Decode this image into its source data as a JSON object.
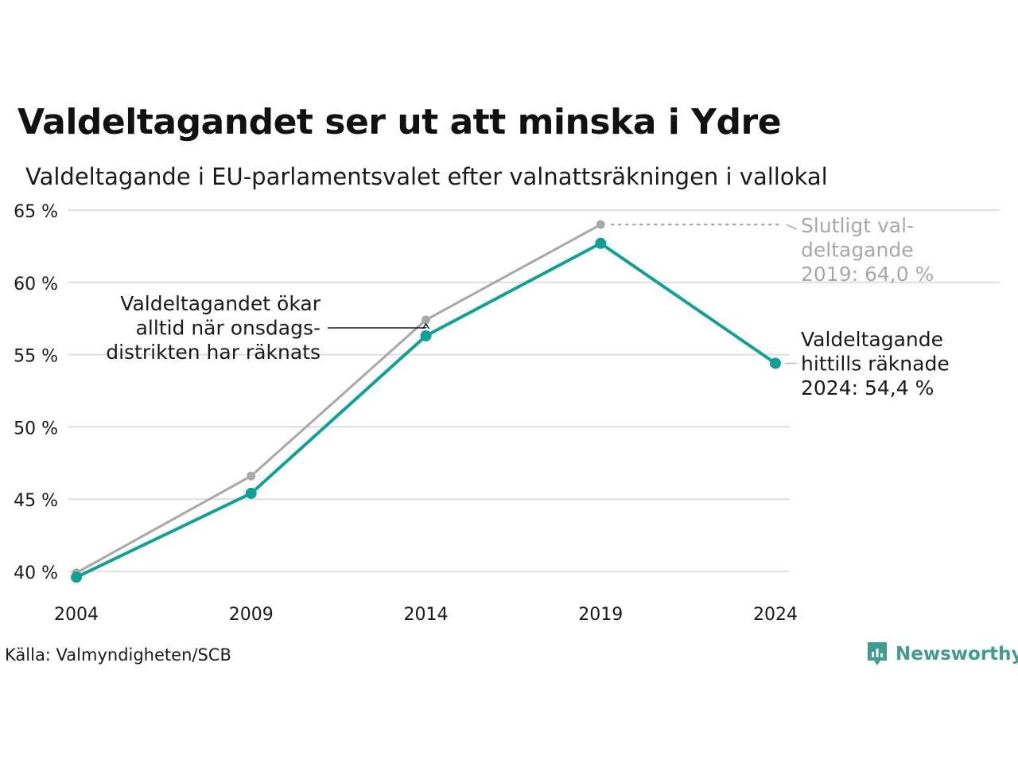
{
  "title": "Valdeltagandet ser ut att minska i Ydre",
  "subtitle": "Valdeltagande i EU-parlamentsvalet efter valnattsräkningen i vallokal",
  "source": "Källa: Valmyndigheten/SCB",
  "brand": "Newsworthy",
  "colors": {
    "current": "#10a196",
    "final": "#a8a8a8",
    "grid": "#e3e3e3",
    "brand": "#3f9c8f"
  },
  "chart_data": {
    "type": "line",
    "x": [
      "2004",
      "2009",
      "2014",
      "2019",
      "2024"
    ],
    "ylim": [
      40,
      65
    ],
    "yticks": [
      40,
      45,
      50,
      55,
      60,
      65
    ],
    "ytick_labels": [
      "40 %",
      "45 %",
      "50 %",
      "55 %",
      "60 %",
      "65 %"
    ],
    "grid": true,
    "series": [
      {
        "key": "final",
        "values": [
          39.9,
          46.6,
          57.4,
          64.0,
          null
        ]
      },
      {
        "key": "current",
        "values": [
          39.6,
          45.4,
          56.3,
          62.7,
          54.4
        ]
      }
    ],
    "annotations": {
      "final_2019": [
        "Slutligt val-",
        "deltagande",
        "2019: 64,0 %"
      ],
      "current_2024": [
        "Valdeltagande",
        "hittills räknade",
        "2024: 54,4 %"
      ],
      "note_2014": [
        "Valdeltagandet ökar",
        "alltid när onsdags-",
        "distrikten har räknats"
      ]
    }
  }
}
